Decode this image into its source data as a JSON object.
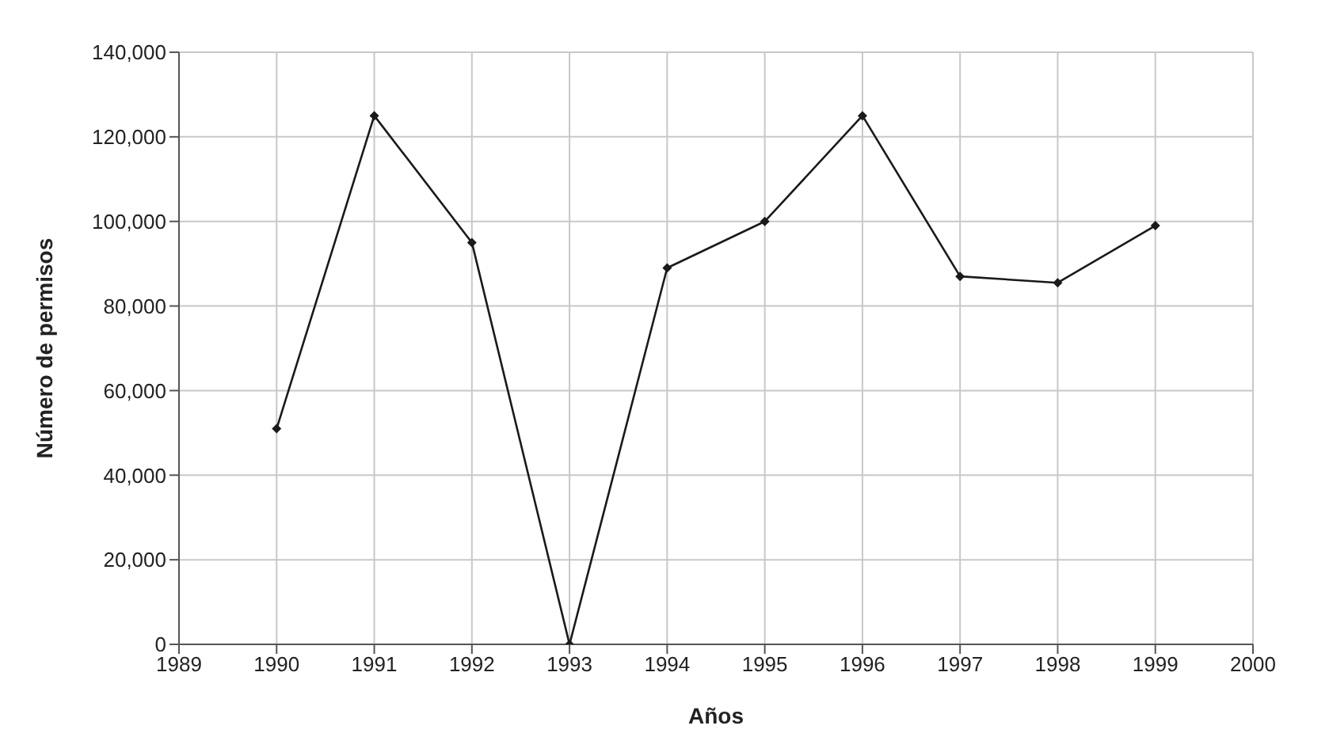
{
  "chart_data": {
    "type": "line",
    "xlabel": "Años",
    "ylabel": "Número de permisos",
    "x": [
      1990,
      1991,
      1992,
      1993,
      1994,
      1995,
      1996,
      1997,
      1998,
      1999
    ],
    "series": [
      {
        "color": "#1a1a1a",
        "values": [
          51000,
          125000,
          95000,
          0,
          89000,
          100000,
          125000,
          87000,
          85500,
          99000
        ]
      }
    ],
    "xlim": [
      1989,
      2000
    ],
    "xticks": [
      1989,
      1990,
      1991,
      1992,
      1993,
      1994,
      1995,
      1996,
      1997,
      1998,
      1999,
      2000
    ],
    "ylim": [
      0,
      140000
    ],
    "yticks": [
      0,
      {
        "value": 20000,
        "label": "20,000"
      },
      {
        "value": 40000,
        "label": "40,000"
      },
      {
        "value": 60000,
        "label": "60,000"
      },
      {
        "value": 80000,
        "label": "80,000"
      },
      {
        "value": 100000,
        "label": "100,000"
      },
      {
        "value": 120000,
        "label": "120,000"
      },
      {
        "value": 140000,
        "label": "140,000"
      }
    ],
    "grid": true,
    "marker": "diamond",
    "line_style": "solid"
  }
}
